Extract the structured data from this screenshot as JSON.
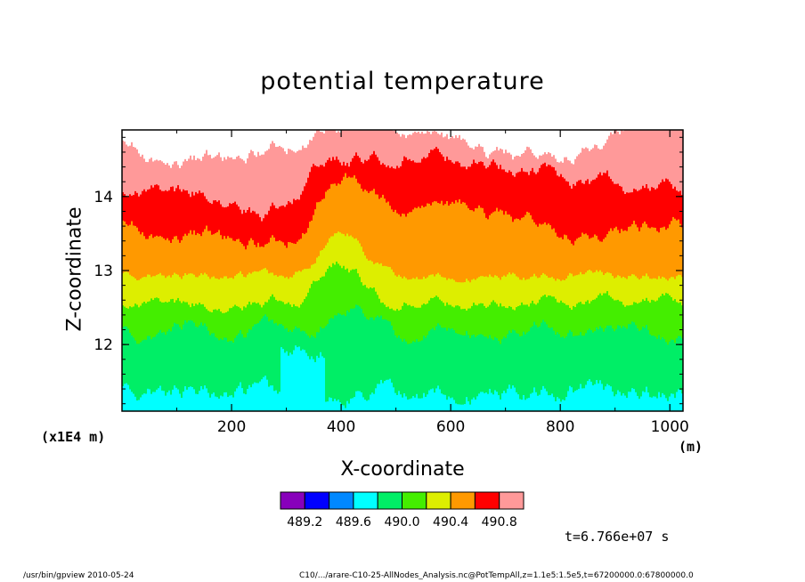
{
  "chart_data": {
    "type": "heatmap",
    "title": "potential temperature",
    "xlabel": "X-coordinate",
    "ylabel": "Z-coordinate",
    "x_unit": "(m)",
    "y_unit": "(x1E4 m)",
    "xlim": [
      0,
      1024
    ],
    "ylim": [
      11.1,
      14.9
    ],
    "x_ticks": [
      200,
      400,
      600,
      800,
      1000
    ],
    "x_tick_labels": [
      "200",
      "400",
      "600",
      "800",
      "1000"
    ],
    "y_ticks": [
      12,
      13,
      14
    ],
    "y_tick_labels": [
      "12",
      "13",
      "14"
    ],
    "levels": [
      489.2,
      489.4,
      489.6,
      489.8,
      490.0,
      490.2,
      490.4,
      490.6,
      490.8
    ],
    "level_labels": [
      "489.2",
      "489.6",
      "490.0",
      "490.4",
      "490.8"
    ],
    "colors": [
      "#8800bb",
      "#0000ff",
      "#0088ff",
      "#00ffff",
      "#00ee66",
      "#44ee00",
      "#ddee00",
      "#ff9900",
      "#ff0000",
      "#ff9999",
      "#ffffff"
    ],
    "time_label": "t=6.766e+07 s"
  },
  "footer": {
    "left": "/usr/bin/gpview   2010-05-24",
    "right": "C10/.../arare-C10-25-AllNodes_Analysis.nc@PotTempAll,z=1.1e5:1.5e5,t=67200000.0:67800000.0"
  }
}
